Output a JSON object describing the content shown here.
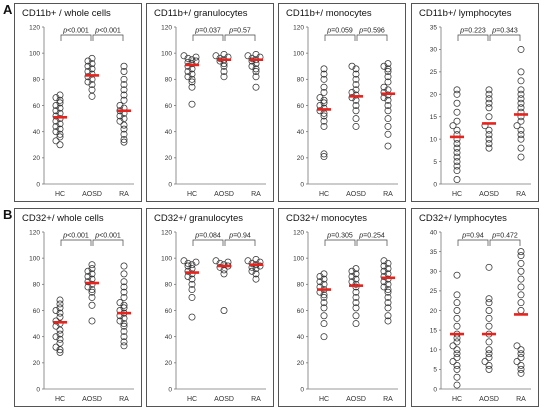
{
  "row_labels": [
    "A",
    "B"
  ],
  "colors": {
    "mean": "#e8221c",
    "points": "#333333",
    "frame": "#555555"
  },
  "chart_data": [
    {
      "type": "scatter",
      "row": 0,
      "col": 0,
      "title": "CD11b+ / whole cells",
      "categories": [
        "HC",
        "AOSD",
        "RA"
      ],
      "ylim": [
        0,
        120
      ],
      "yticks": [
        0,
        20,
        40,
        60,
        80,
        100,
        120
      ],
      "points": [
        [
          30,
          33,
          36,
          38,
          40,
          42,
          44,
          46,
          48,
          50,
          52,
          54,
          56,
          58,
          60,
          62,
          64,
          66,
          68
        ],
        [
          67,
          72,
          76,
          78,
          80,
          82,
          84,
          86,
          88,
          90,
          92,
          94,
          96
        ],
        [
          32,
          34,
          38,
          42,
          45,
          48,
          50,
          52,
          54,
          56,
          58,
          60,
          64,
          68,
          72,
          76,
          80,
          86,
          90
        ]
      ],
      "means": [
        51,
        83,
        56
      ],
      "comparisons": [
        {
          "from": 0,
          "to": 1,
          "label": "p<0.001"
        },
        {
          "from": 1,
          "to": 2,
          "label": "p<0.001"
        }
      ]
    },
    {
      "type": "scatter",
      "row": 0,
      "col": 1,
      "title": "CD11b+/ granulocytes",
      "categories": [
        "HC",
        "AOSD",
        "RA"
      ],
      "ylim": [
        0,
        120
      ],
      "yticks": [
        0,
        20,
        40,
        60,
        80,
        100,
        120
      ],
      "points": [
        [
          61,
          74,
          78,
          80,
          82,
          84,
          86,
          88,
          90,
          92,
          93,
          94,
          95,
          96,
          97,
          98
        ],
        [
          82,
          86,
          90,
          92,
          94,
          95,
          96,
          97,
          98,
          99
        ],
        [
          74,
          82,
          86,
          88,
          90,
          92,
          94,
          95,
          96,
          97,
          98,
          99
        ]
      ],
      "means": [
        91,
        95,
        95
      ],
      "comparisons": [
        {
          "from": 0,
          "to": 1,
          "label": "p=0.037"
        },
        {
          "from": 1,
          "to": 2,
          "label": "p=0.57"
        }
      ]
    },
    {
      "type": "scatter",
      "row": 0,
      "col": 2,
      "title": "CD11b+/ monocytes",
      "categories": [
        "HC",
        "AOSD",
        "RA"
      ],
      "ylim": [
        0,
        120
      ],
      "yticks": [
        0,
        20,
        40,
        60,
        80,
        100,
        120
      ],
      "points": [
        [
          21,
          23,
          44,
          48,
          52,
          54,
          56,
          58,
          60,
          62,
          64,
          66,
          70,
          74,
          80,
          84,
          88
        ],
        [
          44,
          50,
          56,
          60,
          64,
          66,
          68,
          70,
          72,
          76,
          80,
          84,
          88,
          90
        ],
        [
          29,
          38,
          44,
          50,
          56,
          60,
          64,
          66,
          68,
          70,
          72,
          74,
          78,
          82,
          86,
          88,
          90,
          92
        ]
      ],
      "means": [
        57,
        67,
        69
      ],
      "comparisons": [
        {
          "from": 0,
          "to": 1,
          "label": "p=0.059"
        },
        {
          "from": 1,
          "to": 2,
          "label": "p=0.596"
        }
      ]
    },
    {
      "type": "scatter",
      "row": 0,
      "col": 3,
      "title": "CD11b+/ lymphocytes",
      "categories": [
        "HC",
        "AOSD",
        "RA"
      ],
      "ylim": [
        0,
        35
      ],
      "yticks": [
        0,
        5,
        10,
        15,
        20,
        25,
        30,
        35
      ],
      "points": [
        [
          1,
          3,
          4,
          5,
          6,
          7,
          8,
          9,
          10,
          11,
          12,
          13,
          14,
          16,
          18,
          20,
          21
        ],
        [
          8,
          9,
          10,
          11,
          12,
          13,
          15,
          17,
          18,
          19,
          20,
          21
        ],
        [
          6,
          8,
          10,
          11,
          12,
          13,
          14,
          15,
          16,
          17,
          18,
          19,
          20,
          21,
          23,
          25,
          30
        ]
      ],
      "means": [
        10.5,
        13.5,
        15.5
      ],
      "comparisons": [
        {
          "from": 0,
          "to": 1,
          "label": "p=0.223"
        },
        {
          "from": 1,
          "to": 2,
          "label": "p=0.343"
        }
      ]
    },
    {
      "type": "scatter",
      "row": 1,
      "col": 0,
      "title": "CD32+/ whole cells",
      "categories": [
        "HC",
        "AOSD",
        "RA"
      ],
      "ylim": [
        0,
        120
      ],
      "yticks": [
        0,
        20,
        40,
        60,
        80,
        100,
        120
      ],
      "points": [
        [
          28,
          30,
          32,
          35,
          38,
          40,
          42,
          45,
          48,
          50,
          52,
          55,
          58,
          60,
          62,
          65,
          68
        ],
        [
          52,
          64,
          70,
          74,
          76,
          78,
          80,
          82,
          84,
          86,
          88,
          90,
          92,
          95
        ],
        [
          33,
          36,
          40,
          44,
          48,
          50,
          52,
          54,
          56,
          58,
          60,
          62,
          64,
          66,
          70,
          74,
          78,
          82,
          88,
          94
        ]
      ],
      "means": [
        51,
        81,
        58
      ],
      "comparisons": [
        {
          "from": 0,
          "to": 1,
          "label": "p<0.001"
        },
        {
          "from": 1,
          "to": 2,
          "label": "p<0.001"
        }
      ]
    },
    {
      "type": "scatter",
      "row": 1,
      "col": 1,
      "title": "CD32+/ granulocytes",
      "categories": [
        "HC",
        "AOSD",
        "RA"
      ],
      "ylim": [
        0,
        120
      ],
      "yticks": [
        0,
        20,
        40,
        60,
        80,
        100,
        120
      ],
      "points": [
        [
          55,
          70,
          76,
          80,
          84,
          86,
          88,
          90,
          92,
          94,
          95,
          96,
          97,
          98
        ],
        [
          60,
          88,
          91,
          93,
          94,
          95,
          96,
          97,
          98
        ],
        [
          84,
          88,
          90,
          92,
          93,
          94,
          95,
          96,
          97,
          98,
          99
        ]
      ],
      "means": [
        89,
        94,
        95
      ],
      "comparisons": [
        {
          "from": 0,
          "to": 1,
          "label": "p=0.084"
        },
        {
          "from": 1,
          "to": 2,
          "label": "p=0.94"
        }
      ]
    },
    {
      "type": "scatter",
      "row": 1,
      "col": 2,
      "title": "CD32+/ monocytes",
      "categories": [
        "HC",
        "AOSD",
        "RA"
      ],
      "ylim": [
        0,
        120
      ],
      "yticks": [
        0,
        20,
        40,
        60,
        80,
        100,
        120
      ],
      "points": [
        [
          40,
          50,
          56,
          62,
          66,
          70,
          72,
          74,
          76,
          78,
          80,
          82,
          84,
          86,
          88
        ],
        [
          50,
          56,
          62,
          66,
          70,
          74,
          78,
          80,
          82,
          84,
          86,
          88,
          90,
          92
        ],
        [
          52,
          56,
          62,
          66,
          70,
          74,
          76,
          78,
          80,
          82,
          84,
          86,
          88,
          90,
          92,
          94,
          96,
          98
        ]
      ],
      "means": [
        76,
        79,
        85
      ],
      "comparisons": [
        {
          "from": 0,
          "to": 1,
          "label": "p=0.305"
        },
        {
          "from": 1,
          "to": 2,
          "label": "p=0.254"
        }
      ]
    },
    {
      "type": "scatter",
      "row": 1,
      "col": 3,
      "title": "CD32+/ lymphocytes",
      "categories": [
        "HC",
        "AOSD",
        "RA"
      ],
      "ylim": [
        0,
        40
      ],
      "yticks": [
        0,
        5,
        10,
        15,
        20,
        25,
        30,
        35,
        40
      ],
      "points": [
        [
          1,
          3,
          5,
          6,
          7,
          8,
          9,
          10,
          11,
          12,
          13,
          14,
          16,
          18,
          20,
          22,
          24,
          29
        ],
        [
          5,
          6,
          7,
          8,
          9,
          10,
          12,
          14,
          16,
          18,
          20,
          22,
          23,
          31
        ],
        [
          4,
          5,
          6,
          7,
          8,
          9,
          10,
          11,
          20,
          22,
          24,
          26,
          28,
          30,
          32,
          34,
          35
        ]
      ],
      "means": [
        14,
        14,
        19
      ],
      "comparisons": [
        {
          "from": 0,
          "to": 1,
          "label": "p=0.94"
        },
        {
          "from": 1,
          "to": 2,
          "label": "p=0.472"
        }
      ]
    }
  ]
}
